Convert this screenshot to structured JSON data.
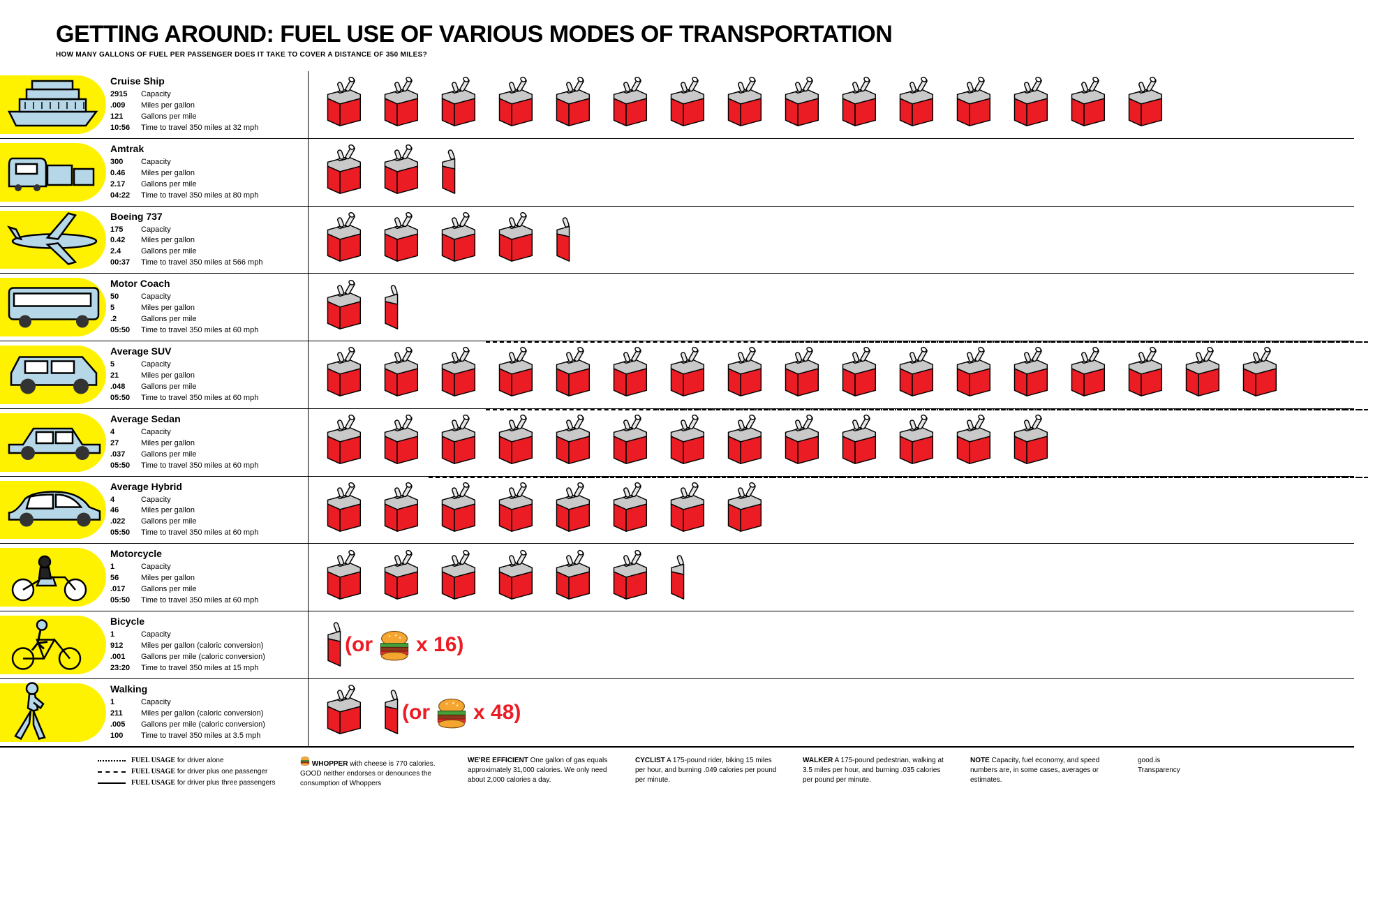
{
  "title": "GETTING AROUND: FUEL USE OF VARIOUS MODES OF TRANSPORTATION",
  "subtitle": "HOW MANY GALLONS OF FUEL PER PASSENGER DOES IT TAKE TO COVER A DISTANCE OF 350 MILES?",
  "colors": {
    "yellow": "#fff200",
    "red": "#ec1c24",
    "vehicle_fill": "#b5d7e8",
    "vehicle_stroke": "#000000",
    "can_gray": "#c9c9c9"
  },
  "stat_labels": {
    "capacity": "Capacity",
    "mpg": "Miles per gallon",
    "gpm": "Gallons per mile",
    "mpg_cal": "Miles per gallon (caloric conversion)",
    "gpm_cal": "Gallons per mile (caloric conversion)",
    "time_prefix": "Time to travel 350 miles at "
  },
  "modes": [
    {
      "name": "Cruise Ship",
      "capacity": "2915",
      "mpg": ".009",
      "gpm": "121",
      "time": "10:56",
      "speed": "32 mph",
      "cans": 15,
      "half": 0,
      "vehicle": "ship"
    },
    {
      "name": "Amtrak",
      "capacity": "300",
      "mpg": "0.46",
      "gpm": "2.17",
      "time": "04:22",
      "speed": "80 mph",
      "cans": 2,
      "half": 1,
      "vehicle": "train"
    },
    {
      "name": "Boeing 737",
      "capacity": "175",
      "mpg": "0.42",
      "gpm": "2.4",
      "time": "00:37",
      "speed": "566 mph",
      "cans": 4,
      "half": 1,
      "vehicle": "plane"
    },
    {
      "name": "Motor Coach",
      "capacity": "50",
      "mpg": "5",
      "gpm": ".2",
      "time": "05:50",
      "speed": "60 mph",
      "cans": 1,
      "half": 1,
      "vehicle": "bus"
    },
    {
      "name": "Average SUV",
      "capacity": "5",
      "mpg": "21",
      "gpm": ".048",
      "time": "05:50",
      "speed": "60 mph",
      "cans": 17,
      "half": 0,
      "vehicle": "suv",
      "dash_from": 3,
      "dot_from": 8
    },
    {
      "name": "Average Sedan",
      "capacity": "4",
      "mpg": "27",
      "gpm": ".037",
      "time": "05:50",
      "speed": "60 mph",
      "cans": 13,
      "half": 0,
      "vehicle": "sedan",
      "dash_from": 3,
      "dot_from": 6
    },
    {
      "name": "Average Hybrid",
      "capacity": "4",
      "mpg": "46",
      "gpm": ".022",
      "time": "05:50",
      "speed": "60 mph",
      "cans": 8,
      "half": 0,
      "vehicle": "hybrid",
      "dash_from": 2,
      "dot_from": 4
    },
    {
      "name": "Motorcycle",
      "capacity": "1",
      "mpg": "56",
      "gpm": ".017",
      "time": "05:50",
      "speed": "60 mph",
      "cans": 6,
      "half": 1,
      "vehicle": "motorcycle"
    },
    {
      "name": "Bicycle",
      "capacity": "1",
      "mpg": "912",
      "gpm": ".001",
      "time": "23:20",
      "speed": "15 mph",
      "cans": 0,
      "half": 1,
      "vehicle": "bicycle",
      "caloric": true,
      "burger_mult": "16"
    },
    {
      "name": "Walking",
      "capacity": "1",
      "mpg": "211",
      "gpm": ".005",
      "time": "100",
      "speed": "3.5 mph",
      "cans": 1,
      "half": 1,
      "vehicle": "walk",
      "caloric": true,
      "burger_mult": "48"
    }
  ],
  "legend": [
    {
      "style": "dotted",
      "text": "FUEL USAGE for driver alone"
    },
    {
      "style": "dashed",
      "text": "FUEL USAGE for driver plus one passenger"
    },
    {
      "style": "solid",
      "text": "FUEL USAGE for driver plus three passengers"
    }
  ],
  "footer": [
    {
      "bold": "WHOPPER",
      "text": " with cheese is 770 calories. GOOD neither endorses or denounces the consumption of Whoppers",
      "burger": true
    },
    {
      "bold": "WE'RE EFFICIENT",
      "text": " One gallon of gas equals approximately 31,000 calories. We only need about 2,000 calories a day."
    },
    {
      "bold": "CYCLIST",
      "text": " A 175-pound rider, biking 15 miles per hour, and burning .049 calories per pound per minute."
    },
    {
      "bold": "WALKER",
      "text": " A 175-pound pedestrian, walking at 3.5 miles per hour, and burning .035 calories per pound per minute."
    },
    {
      "bold": "NOTE",
      "text": " Capacity, fuel economy, and speed numbers are, in some cases, averages or estimates."
    },
    {
      "bold": "",
      "text": "good.is\nTransparency"
    }
  ]
}
